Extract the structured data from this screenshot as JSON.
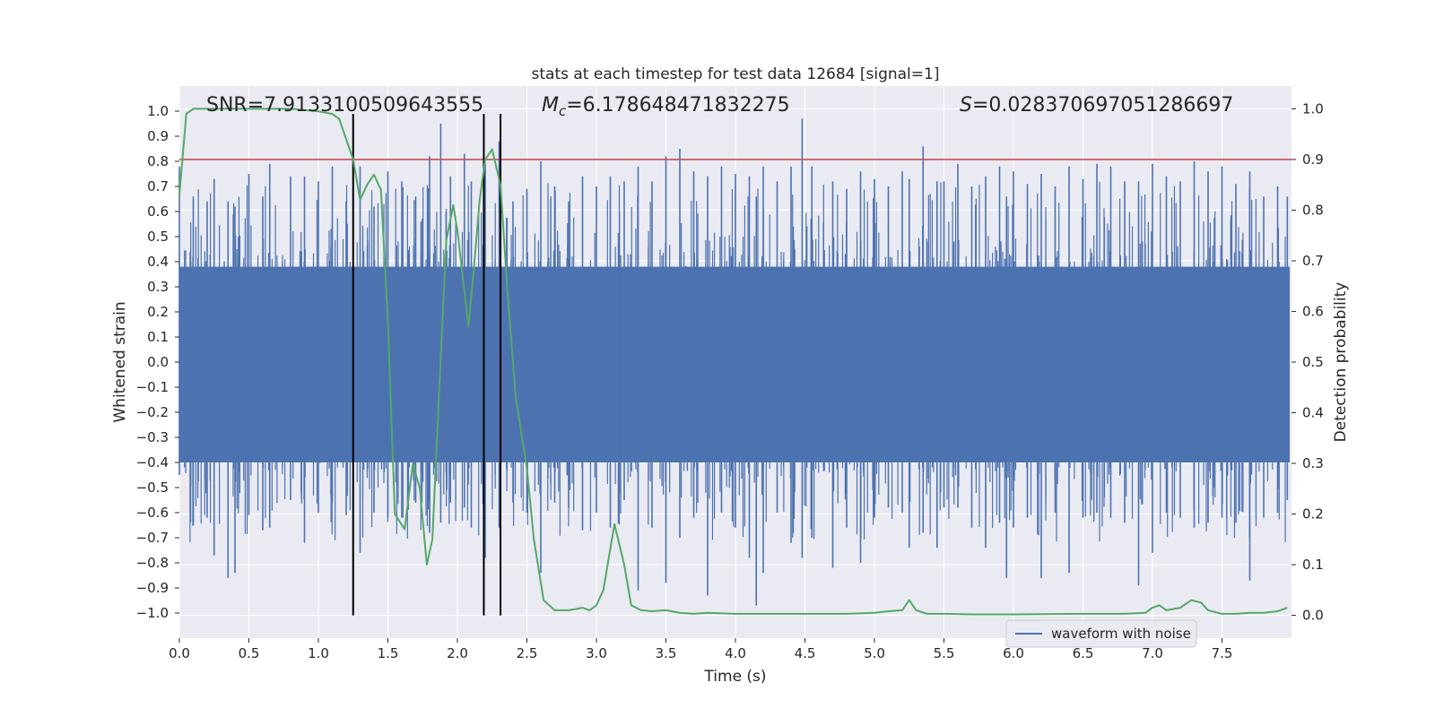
{
  "chart_data": {
    "type": "line",
    "title": "stats at each timestep for test data 12684 [signal=1]",
    "xlabel": "Time (s)",
    "ylabel": "Whitened strain",
    "y2label": "Detection probability",
    "xlim": [
      0.0,
      8.0
    ],
    "ylim": [
      -1.1,
      1.1
    ],
    "y2lim": [
      -0.045,
      1.045
    ],
    "xticks": [
      "0.0",
      "0.5",
      "1.0",
      "1.5",
      "2.0",
      "2.5",
      "3.0",
      "3.5",
      "4.0",
      "4.5",
      "5.0",
      "5.5",
      "6.0",
      "6.5",
      "7.0",
      "7.5"
    ],
    "yticks": [
      "1.0",
      "0.9",
      "0.8",
      "0.7",
      "0.6",
      "0.5",
      "0.4",
      "0.3",
      "0.2",
      "0.1",
      "0.0",
      "−0.1",
      "−0.2",
      "−0.3",
      "−0.4",
      "−0.5",
      "−0.6",
      "−0.7",
      "−0.8",
      "−0.9",
      "−1.0"
    ],
    "y2ticks": [
      "0.0",
      "0.1",
      "0.2",
      "0.3",
      "0.4",
      "0.5",
      "0.6",
      "0.7",
      "0.8",
      "0.9",
      "1.0"
    ],
    "grid": true,
    "legend": {
      "position": "lower-right",
      "entries": [
        "waveform with noise"
      ]
    },
    "annotations": {
      "snr": "SNR=7.913310050964355​5",
      "mc_symbol": "M",
      "mc_sub": "c",
      "mc_value": "=6.178648471832275",
      "s_symbol": "S",
      "s_value": "=0.028370697051286697"
    },
    "threshold": {
      "axis": "y2",
      "value": 0.9,
      "color": "#c44e52"
    },
    "vertical_lines": [
      {
        "x": 1.25,
        "ymin_y2": 0.0,
        "ymax_y2": 0.99
      },
      {
        "x": 2.19,
        "ymin_y2": 0.0,
        "ymax_y2": 0.99
      },
      {
        "x": 2.31,
        "ymin_y2": 0.0,
        "ymax_y2": 0.99
      }
    ],
    "series": [
      {
        "name": "waveform with noise",
        "axis": "y",
        "color": "#4c72b0",
        "note": "dense noisy strain, amplitude mostly within ±0.45 with spikes up to ±0.97",
        "envelope_peaks": [
          [
            0.0,
            0.78,
            -0.45
          ],
          [
            0.1,
            0.66,
            -0.65
          ],
          [
            0.2,
            0.64,
            -0.62
          ],
          [
            0.25,
            0.73,
            -0.77
          ],
          [
            0.35,
            0.64,
            -0.86
          ],
          [
            0.4,
            0.62,
            -0.84
          ],
          [
            0.5,
            0.75,
            -0.61
          ],
          [
            0.6,
            0.66,
            -0.67
          ],
          [
            0.65,
            0.79,
            -0.66
          ],
          [
            0.8,
            0.74,
            -0.55
          ],
          [
            0.9,
            0.74,
            -0.72
          ],
          [
            1.0,
            0.72,
            -0.6
          ],
          [
            1.1,
            0.78,
            -0.56
          ],
          [
            1.2,
            0.64,
            -0.61
          ],
          [
            1.3,
            0.78,
            -0.76
          ],
          [
            1.4,
            0.62,
            -0.6
          ],
          [
            1.5,
            0.76,
            -0.62
          ],
          [
            1.6,
            0.72,
            -0.62
          ],
          [
            1.7,
            0.66,
            -0.56
          ],
          [
            1.8,
            0.82,
            -0.68
          ],
          [
            1.88,
            0.95,
            -0.64
          ],
          [
            1.95,
            0.74,
            -0.56
          ],
          [
            2.05,
            0.83,
            -0.58
          ],
          [
            2.1,
            0.72,
            -0.66
          ],
          [
            2.2,
            0.79,
            -0.78
          ],
          [
            2.3,
            0.88,
            -0.66
          ],
          [
            2.4,
            0.64,
            -0.56
          ],
          [
            2.5,
            0.69,
            -0.6
          ],
          [
            2.6,
            0.8,
            -0.84
          ],
          [
            2.7,
            0.7,
            -0.56
          ],
          [
            2.8,
            0.64,
            -0.58
          ],
          [
            2.9,
            0.74,
            -0.67
          ],
          [
            3.0,
            0.7,
            -0.6
          ],
          [
            3.1,
            0.74,
            -0.66
          ],
          [
            3.2,
            0.72,
            -0.55
          ],
          [
            3.3,
            0.78,
            -0.91
          ],
          [
            3.4,
            0.72,
            -0.66
          ],
          [
            3.5,
            0.82,
            -0.88
          ],
          [
            3.6,
            0.85,
            -0.7
          ],
          [
            3.7,
            0.76,
            -0.62
          ],
          [
            3.8,
            0.74,
            -0.93
          ],
          [
            3.9,
            0.78,
            -0.6
          ],
          [
            4.0,
            0.75,
            -0.66
          ],
          [
            4.1,
            0.74,
            -0.78
          ],
          [
            4.15,
            0.66,
            -0.97
          ],
          [
            4.2,
            0.78,
            -0.84
          ],
          [
            4.3,
            0.72,
            -0.6
          ],
          [
            4.4,
            0.78,
            -0.72
          ],
          [
            4.48,
            0.97,
            -0.78
          ],
          [
            4.55,
            0.78,
            -0.7
          ],
          [
            4.7,
            0.72,
            -0.82
          ],
          [
            4.8,
            0.69,
            -0.66
          ],
          [
            4.9,
            0.76,
            -0.8
          ],
          [
            5.0,
            0.73,
            -0.62
          ],
          [
            5.1,
            0.7,
            -0.58
          ],
          [
            5.2,
            0.76,
            -0.6
          ],
          [
            5.25,
            0.73,
            -0.74
          ],
          [
            5.35,
            0.86,
            -0.68
          ],
          [
            5.45,
            0.72,
            -0.74
          ],
          [
            5.5,
            0.72,
            -0.58
          ],
          [
            5.6,
            0.79,
            -0.58
          ],
          [
            5.7,
            0.7,
            -0.66
          ],
          [
            5.8,
            0.74,
            -0.74
          ],
          [
            5.9,
            0.78,
            -0.64
          ],
          [
            5.95,
            0.66,
            -0.86
          ],
          [
            6.0,
            0.76,
            -0.66
          ],
          [
            6.1,
            0.71,
            -0.62
          ],
          [
            6.2,
            0.75,
            -0.86
          ],
          [
            6.3,
            0.7,
            -0.6
          ],
          [
            6.4,
            0.78,
            -0.84
          ],
          [
            6.5,
            0.73,
            -0.62
          ],
          [
            6.6,
            0.79,
            -0.6
          ],
          [
            6.7,
            0.78,
            -0.62
          ],
          [
            6.8,
            0.72,
            -0.64
          ],
          [
            6.9,
            0.72,
            -0.89
          ],
          [
            7.0,
            0.79,
            -0.76
          ],
          [
            7.1,
            0.74,
            -0.6
          ],
          [
            7.2,
            0.72,
            -0.62
          ],
          [
            7.3,
            0.8,
            -0.66
          ],
          [
            7.4,
            0.76,
            -0.64
          ],
          [
            7.5,
            0.78,
            -0.62
          ],
          [
            7.6,
            0.71,
            -0.64
          ],
          [
            7.7,
            0.76,
            -0.87
          ],
          [
            7.8,
            0.66,
            -0.62
          ],
          [
            7.9,
            0.7,
            -0.6
          ],
          [
            7.97,
            0.66,
            -0.55
          ]
        ]
      },
      {
        "name": "",
        "axis": "y2",
        "color": "#55a868",
        "x": [
          0.0,
          0.05,
          0.1,
          0.2,
          0.5,
          0.8,
          1.0,
          1.1,
          1.15,
          1.2,
          1.25,
          1.3,
          1.35,
          1.4,
          1.45,
          1.5,
          1.55,
          1.62,
          1.68,
          1.73,
          1.78,
          1.82,
          1.87,
          1.92,
          1.97,
          2.0,
          2.05,
          2.08,
          2.12,
          2.16,
          2.2,
          2.25,
          2.31,
          2.36,
          2.42,
          2.5,
          2.55,
          2.62,
          2.7,
          2.8,
          2.9,
          2.95,
          3.0,
          3.05,
          3.13,
          3.2,
          3.25,
          3.32,
          3.4,
          3.5,
          3.6,
          3.7,
          3.8,
          4.0,
          4.2,
          4.5,
          4.8,
          5.0,
          5.1,
          5.2,
          5.25,
          5.3,
          5.38,
          5.5,
          5.7,
          6.0,
          6.5,
          6.8,
          6.95,
          7.0,
          7.05,
          7.1,
          7.2,
          7.28,
          7.35,
          7.4,
          7.5,
          7.6,
          7.7,
          7.8,
          7.9,
          7.97
        ],
        "values": [
          0.83,
          0.99,
          1.0,
          1.0,
          1.0,
          1.0,
          0.995,
          0.99,
          0.98,
          0.94,
          0.9,
          0.82,
          0.85,
          0.87,
          0.84,
          0.58,
          0.2,
          0.17,
          0.3,
          0.25,
          0.1,
          0.15,
          0.45,
          0.74,
          0.81,
          0.76,
          0.64,
          0.57,
          0.69,
          0.82,
          0.9,
          0.92,
          0.85,
          0.64,
          0.43,
          0.29,
          0.15,
          0.03,
          0.01,
          0.01,
          0.015,
          0.01,
          0.02,
          0.05,
          0.18,
          0.1,
          0.02,
          0.01,
          0.008,
          0.01,
          0.005,
          0.003,
          0.005,
          0.003,
          0.003,
          0.003,
          0.003,
          0.005,
          0.008,
          0.01,
          0.03,
          0.01,
          0.003,
          0.003,
          0.002,
          0.002,
          0.003,
          0.003,
          0.005,
          0.015,
          0.02,
          0.01,
          0.015,
          0.03,
          0.025,
          0.01,
          0.003,
          0.003,
          0.005,
          0.005,
          0.008,
          0.015
        ]
      }
    ]
  }
}
